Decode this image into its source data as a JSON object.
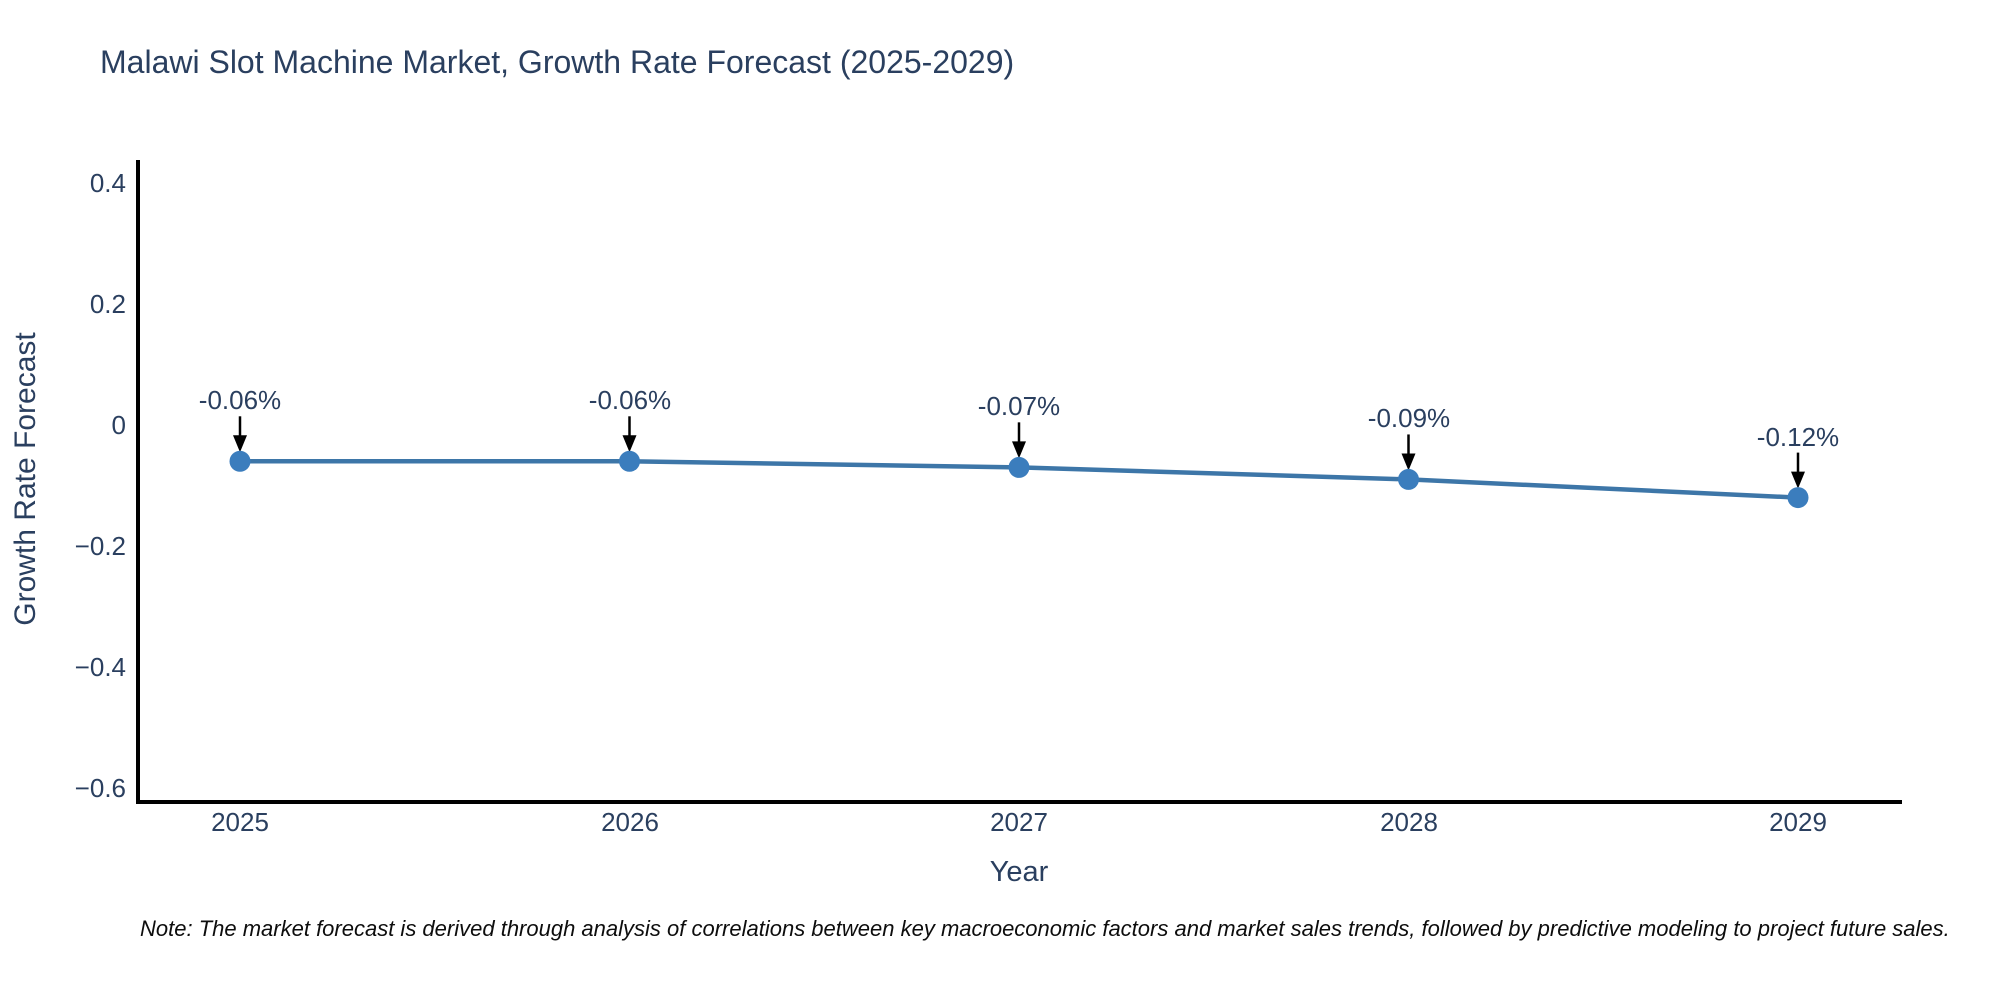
{
  "title": "Malawi Slot Machine Market, Growth Rate Forecast (2025-2029)",
  "note": "Note: The market forecast is derived through analysis of correlations between key macroeconomic factors and market sales trends, followed by predictive modeling to project future sales.",
  "chart_data": {
    "type": "line",
    "title": "Malawi Slot Machine Market, Growth Rate Forecast (2025-2029)",
    "x": [
      2025,
      2026,
      2027,
      2028,
      2029
    ],
    "xtick_labels": [
      "2025",
      "2026",
      "2027",
      "2028",
      "2029"
    ],
    "series": [
      {
        "name": "Growth Rate Forecast",
        "values": [
          -0.06,
          -0.06,
          -0.07,
          -0.09,
          -0.12
        ]
      }
    ],
    "point_labels": [
      "-0.06%",
      "-0.06%",
      "-0.07%",
      "-0.09%",
      "-0.12%"
    ],
    "xlabel": "Year",
    "ylabel": "Growth Rate Forecast",
    "yticks": [
      0.4,
      0.2,
      0,
      -0.2,
      -0.4,
      -0.6
    ],
    "ytick_labels": [
      "0.4",
      "0.2",
      "0",
      "−0.2",
      "−0.4",
      "−0.6"
    ],
    "ylim": [
      -0.62,
      0.44
    ],
    "grid": false,
    "legend_position": "none",
    "colors": {
      "line": "#3d76a8",
      "marker": "#3b7dbd",
      "annotation_arrow": "#000000",
      "axis_line": "#000000",
      "title_text": "#2a3f5f",
      "tick_text": "#2a3f5f"
    }
  }
}
